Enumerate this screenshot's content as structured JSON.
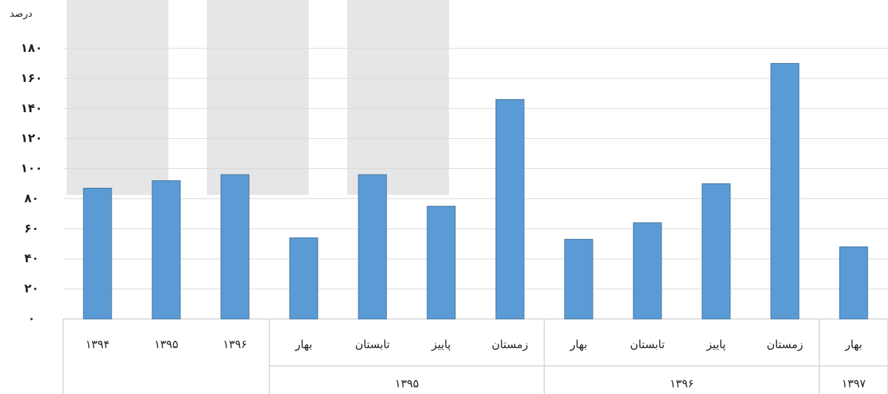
{
  "chart_data": {
    "type": "bar",
    "y_axis_label": "درصد",
    "color": "#5b9bd5",
    "groups": [
      {
        "label": null,
        "categories": [
          "۱۳۹۴",
          "۱۳۹۵",
          "۱۳۹۶"
        ],
        "values": [
          87,
          92,
          96
        ]
      },
      {
        "label": "۱۳۹۵",
        "categories": [
          "بهار",
          "تابستان",
          "پاییز",
          "زمستان"
        ],
        "values": [
          54,
          96,
          75,
          146
        ]
      },
      {
        "label": "۱۳۹۶",
        "categories": [
          "بهار",
          "تابستان",
          "پاییز",
          "زمستان"
        ],
        "values": [
          53,
          64,
          90,
          170
        ]
      },
      {
        "label": "۱۳۹۷",
        "categories": [
          "بهار"
        ],
        "values": [
          48
        ]
      }
    ],
    "ylim": [
      0,
      180
    ],
    "yticks": [
      {
        "value": 0,
        "label": "۰"
      },
      {
        "value": 20,
        "label": "۲۰"
      },
      {
        "value": 40,
        "label": "۴۰"
      },
      {
        "value": 60,
        "label": "۶۰"
      },
      {
        "value": 80,
        "label": "۸۰"
      },
      {
        "value": 100,
        "label": "۱۰۰"
      },
      {
        "value": 120,
        "label": "۱۲۰"
      },
      {
        "value": 140,
        "label": "۱۴۰"
      },
      {
        "value": 160,
        "label": "۱۶۰"
      },
      {
        "value": 180,
        "label": "۱۸۰"
      }
    ],
    "grid": true
  }
}
